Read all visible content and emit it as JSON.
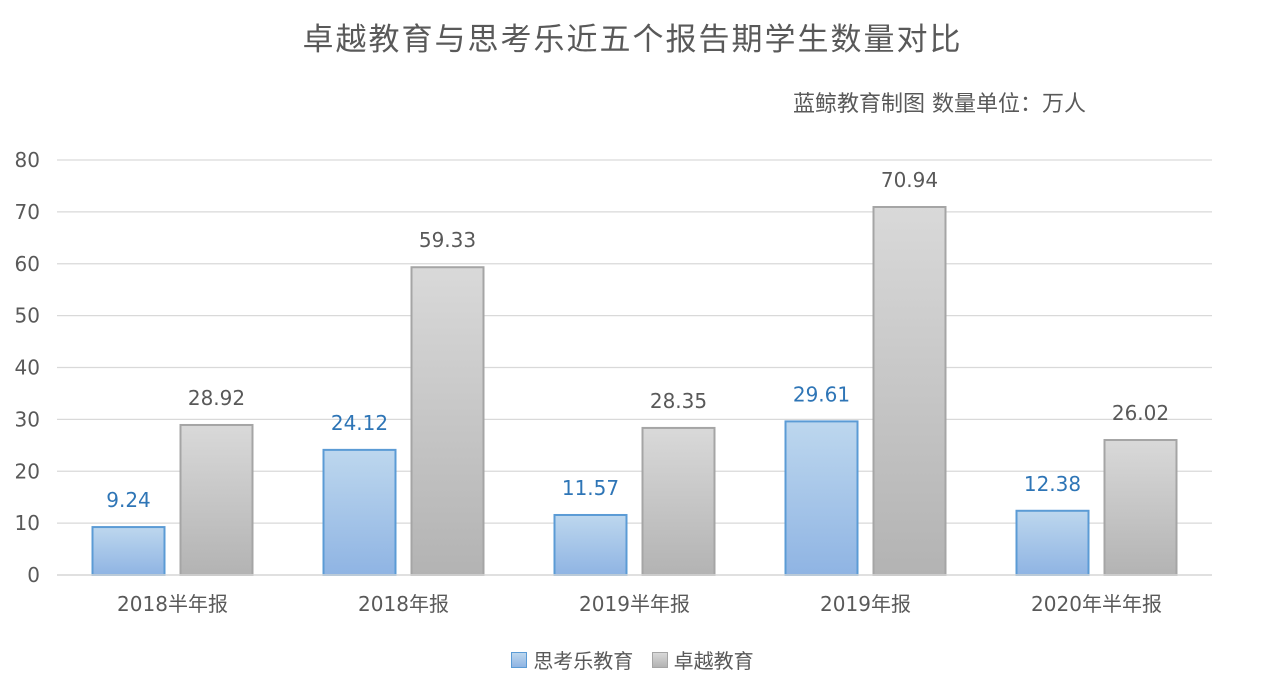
{
  "chart_data": {
    "type": "bar",
    "title": "卓越教育与思考乐近五个报告期学生数量对比",
    "subtitle": "蓝鲸教育制图    数量单位：万人",
    "categories": [
      "2018半年报",
      "2018年报",
      "2019半年报",
      "2019年报",
      "2020年半年报"
    ],
    "series": [
      {
        "name": "思考乐教育",
        "values": [
          9.24,
          24.12,
          11.57,
          29.61,
          12.38
        ],
        "color": "#9dc3e6",
        "label_color": "#2e75b6"
      },
      {
        "name": "卓越教育",
        "values": [
          28.92,
          59.33,
          28.35,
          70.94,
          26.02
        ],
        "color": "#c9c9c9",
        "label_color": "#595959"
      }
    ],
    "ylim": [
      0,
      80
    ],
    "yticks": [
      0,
      10,
      20,
      30,
      40,
      50,
      60,
      70,
      80
    ],
    "data_labels": [
      [
        "9.24",
        "24.12",
        "11.57",
        "29.61",
        "12.38"
      ],
      [
        "28.92",
        "59.33",
        "28.35",
        "70.94",
        "26.02"
      ]
    ],
    "grid": true,
    "legend_position": "bottom"
  }
}
